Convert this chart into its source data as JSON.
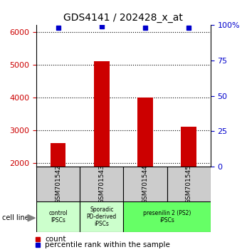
{
  "title": "GDS4141 / 202428_x_at",
  "samples": [
    "GSM701542",
    "GSM701543",
    "GSM701544",
    "GSM701545"
  ],
  "counts": [
    2600,
    5100,
    4000,
    3100
  ],
  "percentiles": [
    98,
    99,
    98,
    98
  ],
  "ylim_left": [
    1900,
    6200
  ],
  "ylim_right": [
    0,
    100
  ],
  "yticks_left": [
    2000,
    3000,
    4000,
    5000,
    6000
  ],
  "yticks_right": [
    0,
    25,
    50,
    75,
    100
  ],
  "bar_color": "#cc0000",
  "dot_color": "#0000cc",
  "bar_width": 0.35,
  "xlabel_color": "#cc0000",
  "ylabel_right_color": "#0000cc",
  "legend_count_color": "#cc0000",
  "legend_percentile_color": "#0000cc",
  "background_color": "#ffffff",
  "sample_box_color": "#cccccc",
  "group_xranges": [
    [
      -0.5,
      0.5
    ],
    [
      0.5,
      1.5
    ],
    [
      1.5,
      3.5
    ]
  ],
  "group_labels": [
    "control\nIPSCs",
    "Sporadic\nPD-derived\niPSCs",
    "presenilin 2 (PS2)\niPSCs"
  ],
  "group_colors": [
    "#ccffcc",
    "#ccffcc",
    "#66ff66"
  ]
}
